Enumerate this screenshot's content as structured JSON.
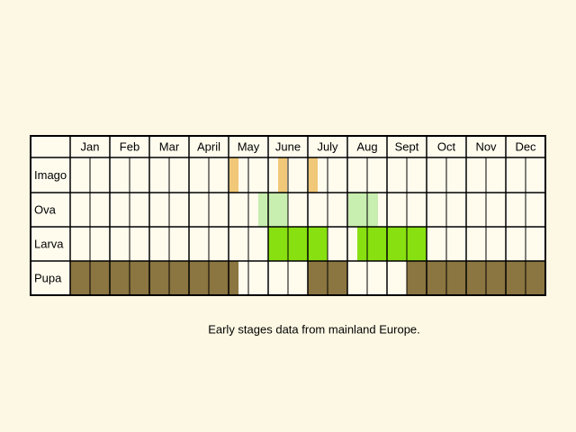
{
  "table": {
    "months": [
      "Jan",
      "Feb",
      "Mar",
      "April",
      "May",
      "June",
      "July",
      "Aug",
      "Sept",
      "Oct",
      "Nov",
      "Dec"
    ],
    "rows": [
      "Imago",
      "Ova",
      "Larva",
      "Pupa"
    ]
  },
  "caption": "Early stages data from mainland Europe."
}
